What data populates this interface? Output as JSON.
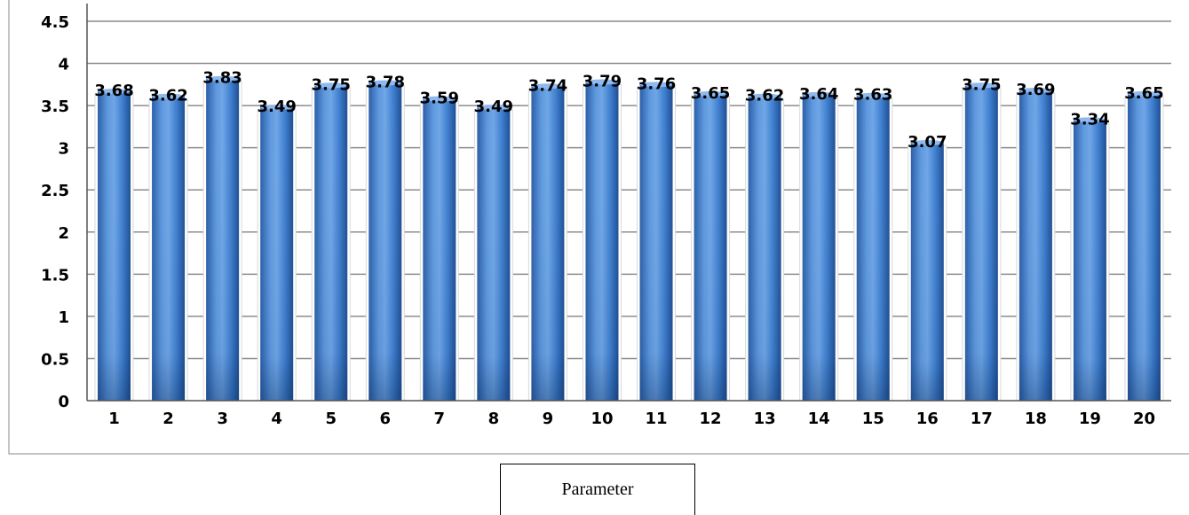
{
  "chart_data": {
    "type": "bar",
    "categories": [
      "1",
      "2",
      "3",
      "4",
      "5",
      "6",
      "7",
      "8",
      "9",
      "10",
      "11",
      "12",
      "13",
      "14",
      "15",
      "16",
      "17",
      "18",
      "19",
      "20"
    ],
    "values": [
      3.68,
      3.62,
      3.83,
      3.49,
      3.75,
      3.78,
      3.59,
      3.49,
      3.74,
      3.79,
      3.76,
      3.65,
      3.62,
      3.64,
      3.63,
      3.07,
      3.75,
      3.69,
      3.34,
      3.65
    ],
    "value_labels": [
      "3.68",
      "3.62",
      "3.83",
      "3.49",
      "3.75",
      "3.78",
      "3.59",
      "3.49",
      "3.74",
      "3.79",
      "3.76",
      "3.65",
      "3.62",
      "3.64",
      "3.63",
      "3.07",
      "3.75",
      "3.69",
      "3.34",
      "3.65"
    ],
    "yticks": [
      0,
      0.5,
      1,
      1.5,
      2,
      2.5,
      3,
      3.5,
      4,
      4.5
    ],
    "ytick_labels": [
      "0",
      "0.5",
      "1",
      "1.5",
      "2",
      "2.5",
      "3",
      "3.5",
      "4",
      "4.5"
    ],
    "ylim": [
      0,
      4.5
    ],
    "title": "",
    "xlabel": "Parameter",
    "ylabel": "",
    "grid": true,
    "legend": "none",
    "colors": {
      "bar_light": "#6fa6e6",
      "bar_mid": "#3f7fcf",
      "bar_dark": "#1f4f93",
      "grid": "#8c8c8c",
      "axis": "#555555",
      "text": "#000000"
    }
  }
}
